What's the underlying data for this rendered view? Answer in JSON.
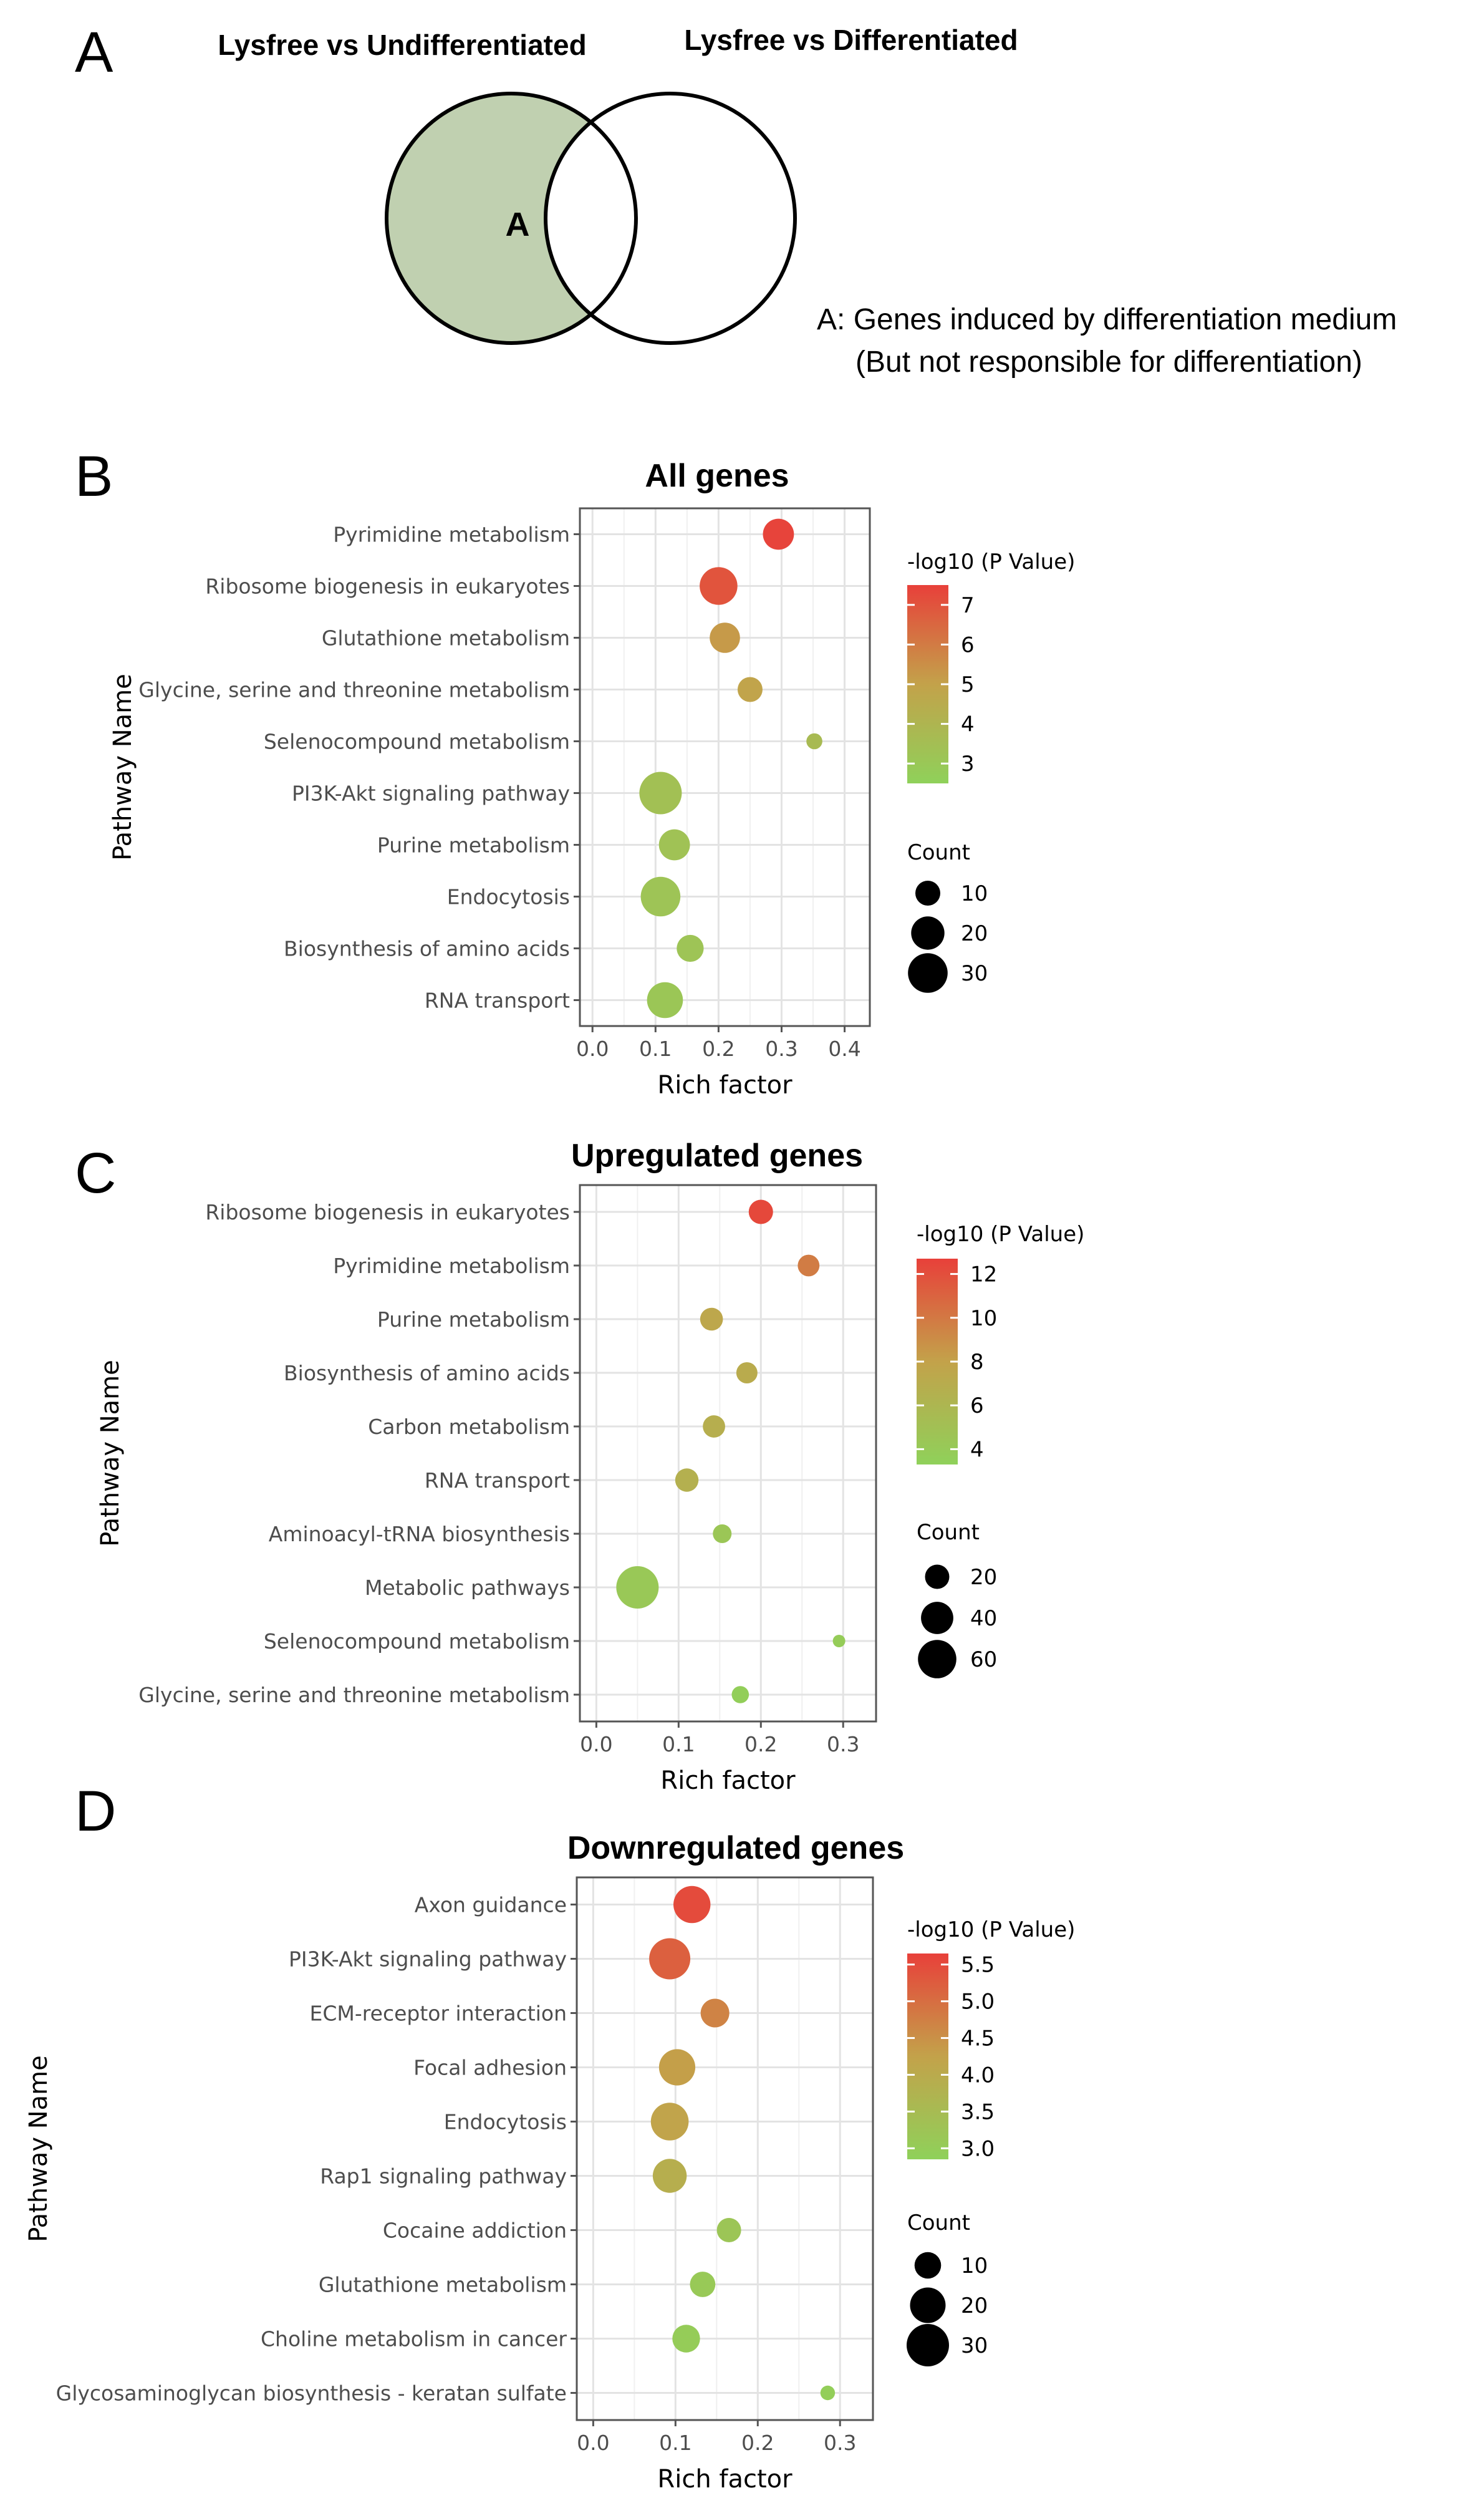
{
  "venn": {
    "letter": "A",
    "left_title": "Lysfree vs Undifferentiated",
    "right_title": "Lysfree vs Differentiated",
    "region_label": "A",
    "region_color": "#c0d0b0",
    "note_line1": "A: Genes induced by differentiation medium",
    "note_line2": "(But not responsible for differentiation)"
  },
  "colors": {
    "low": "#8fd15a",
    "mid": "#c3a24a",
    "high": "#e8403a"
  },
  "chart_data": [
    {
      "letter": "B",
      "type": "scatter",
      "title": "All genes",
      "xlabel": "Rich factor",
      "ylabel": "Pathway Name",
      "xlim": [
        -0.02,
        0.44
      ],
      "xticks": [
        "0.0",
        "0.1",
        "0.2",
        "0.3",
        "0.4"
      ],
      "xtick_values": [
        0,
        0.1,
        0.2,
        0.3,
        0.4
      ],
      "grid": true,
      "categories": [
        "Pyrimidine metabolism",
        "Ribosome biogenesis in eukaryotes",
        "Glutathione metabolism",
        "Glycine, serine and threonine metabolism",
        "Selenocompound metabolism",
        "PI3K-Akt signaling pathway",
        "Purine metabolism",
        "Endocytosis",
        "Biosynthesis of amino acids",
        "RNA transport"
      ],
      "rich_factor": [
        0.295,
        0.2,
        0.21,
        0.25,
        0.352,
        0.108,
        0.13,
        0.108,
        0.155,
        0.115
      ],
      "neg_log10_p": [
        7.4,
        7.0,
        5.2,
        4.9,
        3.7,
        3.4,
        3.3,
        3.2,
        3.2,
        3.1
      ],
      "count": [
        17,
        27,
        16,
        10,
        3,
        35,
        17,
        30,
        12,
        24
      ],
      "color_legend_title": "-log10 (P Value)",
      "color_ticks": [
        "7",
        "6",
        "5",
        "4",
        "3"
      ],
      "color_tick_values": [
        7,
        6,
        5,
        4,
        3
      ],
      "color_range": [
        2.5,
        7.5
      ],
      "size_legend_title": "Count",
      "size_ticks": [
        "10",
        "20",
        "30"
      ],
      "size_tick_values": [
        10,
        20,
        30
      ],
      "size_max": 35
    },
    {
      "letter": "C",
      "type": "scatter",
      "title": "Upregulated genes",
      "xlabel": "Rich factor",
      "ylabel": "Pathway Name",
      "xlim": [
        -0.02,
        0.34
      ],
      "xticks": [
        "0.0",
        "0.1",
        "0.2",
        "0.3"
      ],
      "xtick_values": [
        0,
        0.1,
        0.2,
        0.3
      ],
      "grid": true,
      "categories": [
        "Ribosome biogenesis in eukaryotes",
        "Pyrimidine metabolism",
        "Purine metabolism",
        "Biosynthesis of amino acids",
        "Carbon metabolism",
        "RNA transport",
        "Aminoacyl-tRNA biosynthesis",
        "Metabolic pathways",
        "Selenocompound metabolism",
        "Glycine, serine and threonine metabolism"
      ],
      "rich_factor": [
        0.2,
        0.258,
        0.14,
        0.183,
        0.143,
        0.11,
        0.153,
        0.05,
        0.295,
        0.175
      ],
      "neg_log10_p": [
        12.3,
        9.8,
        7.5,
        7.1,
        6.8,
        6.6,
        4.4,
        4.2,
        3.8,
        3.6
      ],
      "count": [
        20,
        15,
        17,
        14,
        16,
        18,
        10,
        75,
        3,
        8
      ],
      "color_legend_title": "-log10 (P Value)",
      "color_ticks": [
        "12",
        "10",
        "8",
        "6",
        "4"
      ],
      "color_tick_values": [
        12,
        10,
        8,
        6,
        4
      ],
      "color_range": [
        3.3,
        12.7
      ],
      "size_legend_title": "Count",
      "size_ticks": [
        "20",
        "40",
        "60"
      ],
      "size_tick_values": [
        20,
        40,
        60
      ],
      "size_max": 75
    },
    {
      "letter": "D",
      "type": "scatter",
      "title": "Downregulated genes",
      "xlabel": "Rich factor",
      "ylabel": "Pathway Name",
      "xlim": [
        -0.02,
        0.34
      ],
      "xticks": [
        "0.0",
        "0.1",
        "0.2",
        "0.3"
      ],
      "xtick_values": [
        0,
        0.1,
        0.2,
        0.3
      ],
      "grid": true,
      "categories": [
        "Axon guidance",
        "PI3K-Akt signaling pathway",
        "ECM-receptor interaction",
        "Focal adhesion",
        "Endocytosis",
        "Rap1 signaling pathway",
        "Cocaine addiction",
        "Glutathione metabolism",
        "Choline metabolism in cancer",
        "Glycosaminoglycan biosynthesis - keratan sulfate"
      ],
      "rich_factor": [
        0.12,
        0.093,
        0.148,
        0.102,
        0.093,
        0.093,
        0.165,
        0.133,
        0.113,
        0.285
      ],
      "neg_log10_p": [
        5.5,
        5.2,
        4.7,
        4.3,
        4.2,
        3.9,
        3.2,
        3.1,
        3.0,
        2.95
      ],
      "count": [
        22,
        28,
        12,
        21,
        23,
        18,
        8,
        9,
        11,
        2
      ],
      "color_legend_title": "-log10 (P Value)",
      "color_ticks": [
        "5.5",
        "5.0",
        "4.5",
        "4.0",
        "3.5",
        "3.0"
      ],
      "color_tick_values": [
        5.5,
        5.0,
        4.5,
        4.0,
        3.5,
        3.0
      ],
      "color_range": [
        2.85,
        5.65
      ],
      "size_legend_title": "Count",
      "size_ticks": [
        "10",
        "20",
        "30"
      ],
      "size_tick_values": [
        10,
        20,
        30
      ],
      "size_max": 30
    }
  ]
}
